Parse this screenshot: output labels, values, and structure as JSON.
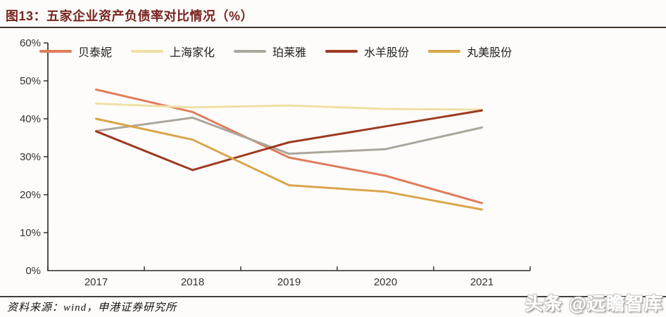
{
  "title": "图13：五家企业资产负债率对比情况（%）",
  "source_note": "资料来源：wind，申港证券研究所",
  "watermark": "头条 @远瞻智库",
  "colors": {
    "title_text": "#78241e",
    "axis": "#262626",
    "tick_label": "#333333"
  },
  "chart_data": {
    "type": "line",
    "title": "五家企业资产负债率对比情况（%）",
    "categories": [
      "2017",
      "2018",
      "2019",
      "2020",
      "2021"
    ],
    "series": [
      {
        "name": "贝泰妮",
        "color": "#e07b5c",
        "values": [
          47.7,
          41.8,
          29.8,
          25.0,
          17.8
        ]
      },
      {
        "name": "上海家化",
        "color": "#efe0a4",
        "values": [
          44.0,
          43.0,
          43.5,
          42.6,
          42.4
        ]
      },
      {
        "name": "珀莱雅",
        "color": "#aba69d",
        "values": [
          36.8,
          40.3,
          30.8,
          32.0,
          37.7
        ]
      },
      {
        "name": "水羊股份",
        "color": "#9e3a22",
        "values": [
          36.7,
          26.5,
          33.8,
          38.0,
          42.2
        ]
      },
      {
        "name": "丸美股份",
        "color": "#d9a54c",
        "values": [
          40.0,
          34.5,
          22.5,
          20.8,
          16.1
        ]
      }
    ],
    "ylim": [
      0,
      60
    ],
    "ytick_labels": [
      "0%",
      "10%",
      "20%",
      "30%",
      "40%",
      "50%",
      "60%"
    ],
    "ytick_step": 10,
    "xlabel": "",
    "ylabel": "",
    "grid": false,
    "legend_position": "top"
  }
}
